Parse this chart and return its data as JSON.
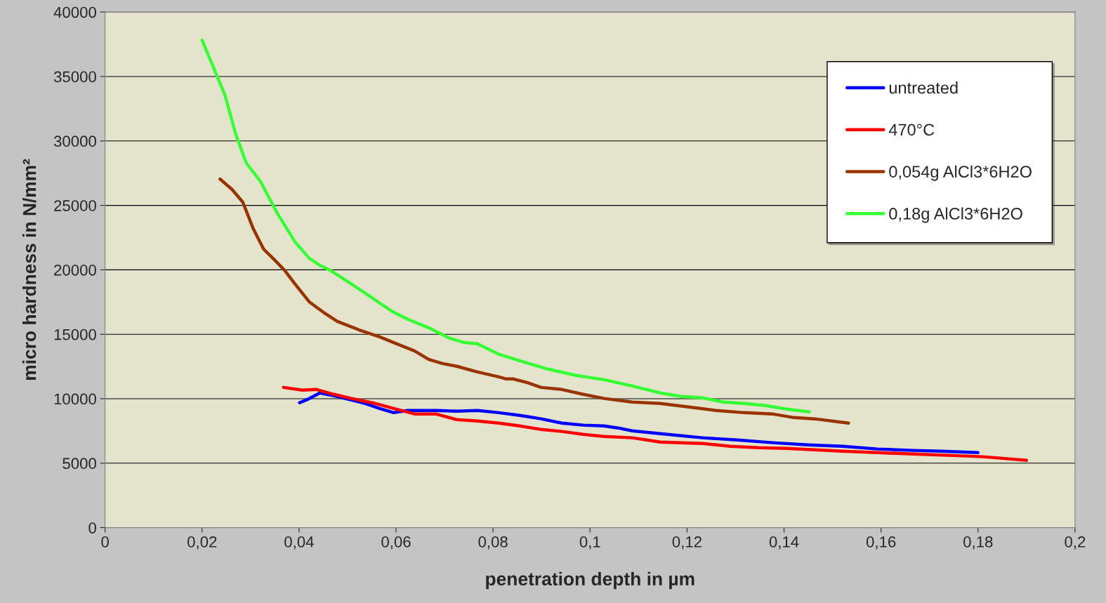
{
  "chart_data": {
    "type": "line",
    "xlabel": "penetration depth in µm",
    "ylabel": "micro hardness in N/mm²",
    "xlim": [
      0,
      0.2
    ],
    "ylim": [
      0,
      40000
    ],
    "xticks": [
      0,
      {
        "value": 0.02,
        "label": "0,02"
      },
      {
        "value": 0.04,
        "label": "0,04"
      },
      {
        "value": 0.06,
        "label": "0,06"
      },
      {
        "value": 0.08,
        "label": "0,08"
      },
      {
        "value": 0.1,
        "label": "0,1"
      },
      {
        "value": 0.12,
        "label": "0,12"
      },
      {
        "value": 0.14,
        "label": "0,14"
      },
      {
        "value": 0.16,
        "label": "0,16"
      },
      {
        "value": 0.18,
        "label": "0,18"
      },
      {
        "value": 0.2,
        "label": "0,2"
      }
    ],
    "yticks": [
      0,
      5000,
      10000,
      15000,
      20000,
      25000,
      30000,
      35000,
      40000
    ],
    "grid": "y",
    "legend": "top right",
    "marker": "none",
    "line_style": "solid",
    "series": [
      {
        "name": "untreated",
        "color": "#0000ff",
        "x": [
          0.0401,
          0.0421,
          0.0443,
          0.0472,
          0.0508,
          0.0537,
          0.0566,
          0.0595,
          0.0624,
          0.0682,
          0.0725,
          0.0768,
          0.0812,
          0.0855,
          0.0899,
          0.0942,
          0.0986,
          0.1029,
          0.1058,
          0.1087,
          0.113,
          0.1174,
          0.1232,
          0.1304,
          0.1376,
          0.1449,
          0.1521,
          0.1593,
          0.1666,
          0.1724,
          0.18
        ],
        "values": [
          9690,
          10010,
          10450,
          10230,
          9900,
          9630,
          9250,
          8920,
          9090,
          9090,
          9030,
          9090,
          8920,
          8710,
          8440,
          8110,
          7950,
          7890,
          7730,
          7510,
          7350,
          7180,
          6970,
          6800,
          6590,
          6420,
          6310,
          6100,
          5990,
          5930,
          5820
        ]
      },
      {
        "name": "470°C",
        "color": "#ff0000",
        "x": [
          0.0368,
          0.0407,
          0.0436,
          0.0472,
          0.0508,
          0.0551,
          0.0595,
          0.0638,
          0.0682,
          0.0725,
          0.0768,
          0.0812,
          0.0855,
          0.0899,
          0.0942,
          0.0986,
          0.1029,
          0.1087,
          0.1145,
          0.1188,
          0.1232,
          0.1289,
          0.1347,
          0.1405,
          0.1463,
          0.1521,
          0.1593,
          0.1666,
          0.1738,
          0.181,
          0.19
        ],
        "values": [
          10880,
          10670,
          10720,
          10340,
          10020,
          9690,
          9250,
          8820,
          8820,
          8380,
          8270,
          8110,
          7890,
          7620,
          7460,
          7240,
          7070,
          6970,
          6640,
          6580,
          6530,
          6310,
          6200,
          6150,
          6040,
          5930,
          5820,
          5710,
          5610,
          5500,
          5220
        ]
      },
      {
        "name": "0,054g AlCl3*6H2O",
        "color": "#993300",
        "x": [
          0.0237,
          0.0262,
          0.0284,
          0.0305,
          0.0327,
          0.0349,
          0.037,
          0.0392,
          0.0421,
          0.045,
          0.0479,
          0.0523,
          0.0566,
          0.0609,
          0.0638,
          0.0667,
          0.0696,
          0.0725,
          0.0768,
          0.0812,
          0.0826,
          0.0841,
          0.087,
          0.0899,
          0.0942,
          0.0986,
          0.1029,
          0.1087,
          0.1145,
          0.1203,
          0.126,
          0.1318,
          0.1376,
          0.142,
          0.1463,
          0.1533
        ],
        "values": [
          27050,
          26230,
          25250,
          23240,
          21600,
          20790,
          19970,
          18880,
          17520,
          16710,
          16000,
          15350,
          14800,
          14150,
          13710,
          13060,
          12730,
          12520,
          12080,
          11700,
          11540,
          11540,
          11260,
          10880,
          10720,
          10340,
          10020,
          9740,
          9630,
          9360,
          9090,
          8920,
          8820,
          8540,
          8440,
          8110
        ]
      },
      {
        "name": "0,18g AlCl3*6H2O",
        "color": "#33ff33",
        "x": [
          0.02,
          0.0226,
          0.0247,
          0.0269,
          0.0291,
          0.032,
          0.0356,
          0.0392,
          0.0421,
          0.0443,
          0.0464,
          0.0493,
          0.0537,
          0.0573,
          0.0595,
          0.0624,
          0.0667,
          0.0711,
          0.074,
          0.0768,
          0.0812,
          0.0855,
          0.0913,
          0.0971,
          0.1029,
          0.1087,
          0.1145,
          0.1188,
          0.1232,
          0.1275,
          0.1318,
          0.1362,
          0.1405,
          0.1452
        ],
        "values": [
          37820,
          35480,
          33580,
          30580,
          28300,
          26880,
          24330,
          22150,
          20900,
          20350,
          19970,
          19270,
          18180,
          17250,
          16710,
          16170,
          15510,
          14690,
          14370,
          14260,
          13450,
          12950,
          12300,
          11810,
          11480,
          10990,
          10450,
          10180,
          10070,
          9740,
          9630,
          9470,
          9200,
          8980
        ]
      }
    ]
  }
}
